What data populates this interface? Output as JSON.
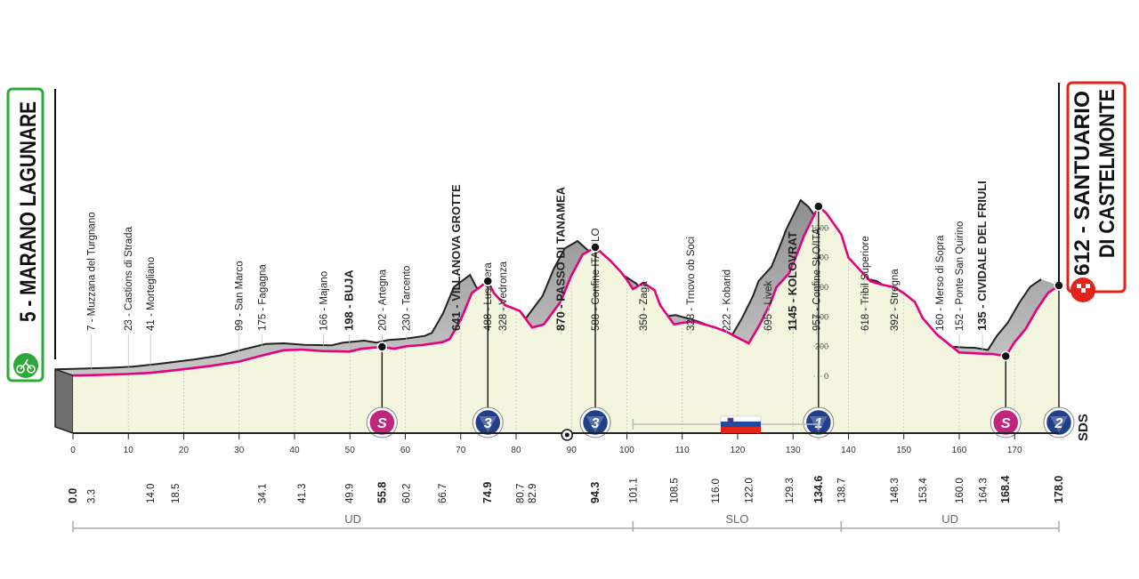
{
  "colors": {
    "profile_fill": "#f3f5df",
    "profile_side": "#a3a3a3",
    "profile_line": "#e6007e",
    "profile_ink": "#222222",
    "start_box": "#2fa83a",
    "finish_box": "#e2231a",
    "kom_badge": "#1f3e8c",
    "sprint_badge": "#c0267e"
  },
  "start": {
    "label": "5 - MARANO LAGUNARE",
    "icon": "cyclist-icon"
  },
  "finish": {
    "label_line1": "612 - SANTUARIO",
    "label_line2": "DI CASTELMONTE",
    "icon": "finish-flag-icon"
  },
  "chart_data": {
    "type": "area",
    "title": "",
    "xlabel": "",
    "ylabel": "",
    "xlim": [
      0,
      178
    ],
    "ylim": [
      0,
      1200
    ],
    "km_ticks": [
      0,
      10,
      20,
      30,
      40,
      50,
      60,
      70,
      80,
      90,
      100,
      110,
      120,
      130,
      140,
      150,
      160,
      170
    ],
    "altitude_ticks": [
      0,
      200,
      400,
      600,
      800,
      1000
    ],
    "profile": {
      "x": [
        0,
        3.3,
        10,
        14.0,
        18.5,
        25,
        30,
        34.1,
        38,
        41.3,
        45,
        49.9,
        52,
        55.8,
        58,
        60.2,
        63,
        66.7,
        68,
        70,
        72,
        74.9,
        76,
        78,
        80.7,
        82.9,
        85,
        88,
        90,
        92,
        94.3,
        97,
        99,
        100,
        101.1,
        103,
        105,
        106,
        108.5,
        110,
        112,
        114,
        116.0,
        118,
        120,
        122.0,
        124,
        126,
        127,
        129.3,
        131,
        132,
        134.6,
        136,
        138.7,
        140,
        142,
        144,
        146,
        148.3,
        150,
        152,
        153.4,
        156,
        160.0,
        164.3,
        166,
        168.4,
        170,
        172,
        174,
        176,
        178.0
      ],
      "y": [
        5,
        7,
        15,
        23,
        41,
        70,
        99,
        140,
        175,
        180,
        170,
        166,
        185,
        198,
        185,
        202,
        210,
        230,
        250,
        380,
        560,
        641,
        560,
        480,
        440,
        328,
        350,
        500,
        680,
        820,
        870,
        780,
        700,
        650,
        588,
        630,
        580,
        480,
        350,
        360,
        370,
        350,
        328,
        300,
        260,
        222,
        350,
        500,
        600,
        695,
        850,
        950,
        1145,
        1100,
        957,
        800,
        720,
        640,
        618,
        600,
        560,
        500,
        392,
        280,
        160,
        152,
        150,
        135,
        230,
        320,
        450,
        560,
        612
      ]
    },
    "km_labels": [
      {
        "km": 0.0,
        "label": "0.0",
        "bold": true
      },
      {
        "km": 3.3,
        "label": "3.3",
        "bold": false
      },
      {
        "km": 14.0,
        "label": "14.0",
        "bold": false
      },
      {
        "km": 18.5,
        "label": "18.5",
        "bold": false
      },
      {
        "km": 34.1,
        "label": "34.1",
        "bold": false
      },
      {
        "km": 41.3,
        "label": "41.3",
        "bold": false
      },
      {
        "km": 49.9,
        "label": "49.9",
        "bold": false
      },
      {
        "km": 55.8,
        "label": "55.8",
        "bold": true
      },
      {
        "km": 60.2,
        "label": "60.2",
        "bold": false
      },
      {
        "km": 66.7,
        "label": "66.7",
        "bold": false
      },
      {
        "km": 74.9,
        "label": "74.9",
        "bold": true
      },
      {
        "km": 80.7,
        "label": "80.7",
        "bold": false
      },
      {
        "km": 82.9,
        "label": "82.9",
        "bold": false
      },
      {
        "km": 94.3,
        "label": "94.3",
        "bold": true
      },
      {
        "km": 101.1,
        "label": "101.1",
        "bold": false
      },
      {
        "km": 108.5,
        "label": "108.5",
        "bold": false
      },
      {
        "km": 116.0,
        "label": "116.0",
        "bold": false
      },
      {
        "km": 122.0,
        "label": "122.0",
        "bold": false
      },
      {
        "km": 129.3,
        "label": "129.3",
        "bold": false
      },
      {
        "km": 134.6,
        "label": "134.6",
        "bold": true
      },
      {
        "km": 138.7,
        "label": "138.7",
        "bold": false
      },
      {
        "km": 148.3,
        "label": "148.3",
        "bold": false
      },
      {
        "km": 153.4,
        "label": "153.4",
        "bold": false
      },
      {
        "km": 160.0,
        "label": "160.0",
        "bold": false
      },
      {
        "km": 164.3,
        "label": "164.3",
        "bold": false
      },
      {
        "km": 168.4,
        "label": "168.4",
        "bold": true
      },
      {
        "km": 178.0,
        "label": "178.0",
        "bold": true
      }
    ],
    "places": [
      {
        "km": 3.3,
        "text": "7 - Muzzana del Turgnano",
        "bold": false
      },
      {
        "km": 10.0,
        "text": "23 - Castions di Strada",
        "bold": false
      },
      {
        "km": 14.0,
        "text": "41 - Mortegliano",
        "bold": false
      },
      {
        "km": 30.0,
        "text": "99 - San Marco",
        "bold": false
      },
      {
        "km": 34.1,
        "text": "175 - Fagagna",
        "bold": false
      },
      {
        "km": 45.2,
        "text": "166 - Majano",
        "bold": false
      },
      {
        "km": 49.9,
        "text": "198 - BUJA",
        "bold": true
      },
      {
        "km": 55.8,
        "text": "202 - Artegna",
        "bold": false
      },
      {
        "km": 60.2,
        "text": "230 - Tarcento",
        "bold": false
      },
      {
        "km": 69.2,
        "text": "641 - VILLANOVA GROTTE",
        "bold": true
      },
      {
        "km": 74.9,
        "text": "488 - Lusevera",
        "bold": false
      },
      {
        "km": 77.6,
        "text": "328 - Vedronza",
        "bold": false
      },
      {
        "km": 88.1,
        "text": "870 - PASSO DI TANAMEA",
        "bold": true
      },
      {
        "km": 94.3,
        "text": "588 - Confine ITA/SLO",
        "bold": false
      },
      {
        "km": 103.0,
        "text": "350 - Zaga",
        "bold": false
      },
      {
        "km": 111.5,
        "text": "328 - Trnovo ob Soci",
        "bold": false
      },
      {
        "km": 118.0,
        "text": "222 - Kobarid",
        "bold": false
      },
      {
        "km": 125.5,
        "text": "695 - Livek",
        "bold": false
      },
      {
        "km": 130.0,
        "text": "1145 - KOLOVRAT",
        "bold": true
      },
      {
        "km": 134.2,
        "text": "957 - Confine SLO/ITA",
        "bold": false
      },
      {
        "km": 143.0,
        "text": "618 - Tribil Superiore",
        "bold": false
      },
      {
        "km": 148.3,
        "text": "392 - Stregna",
        "bold": false
      },
      {
        "km": 156.5,
        "text": "160 - Merso di Sopra",
        "bold": false
      },
      {
        "km": 160.0,
        "text": "152 - Ponte San Quirino",
        "bold": false
      },
      {
        "km": 164.2,
        "text": "135 - CIVIDALE DEL FRIULI",
        "bold": true
      }
    ],
    "points": [
      {
        "km": 55.8,
        "alt": 198,
        "type": "sprint",
        "label": "S"
      },
      {
        "km": 74.9,
        "alt": 641,
        "type": "kom",
        "label": "3"
      },
      {
        "km": 94.3,
        "alt": 870,
        "type": "kom",
        "label": "3"
      },
      {
        "km": 134.6,
        "alt": 1145,
        "type": "kom",
        "label": "1"
      },
      {
        "km": 168.4,
        "alt": 135,
        "type": "sprint",
        "label": "S"
      },
      {
        "km": 178.0,
        "alt": 612,
        "type": "kom",
        "label": "2"
      }
    ],
    "regions": [
      {
        "from": 0,
        "to": 101.1,
        "label": "UD"
      },
      {
        "from": 101.1,
        "to": 138.7,
        "label": "SLO"
      },
      {
        "from": 138.7,
        "to": 178.0,
        "label": "UD"
      }
    ],
    "feed_zone_km": 89.2,
    "border_section": {
      "from": 101.1,
      "to": 134.6
    },
    "sds_label": "SDS"
  }
}
